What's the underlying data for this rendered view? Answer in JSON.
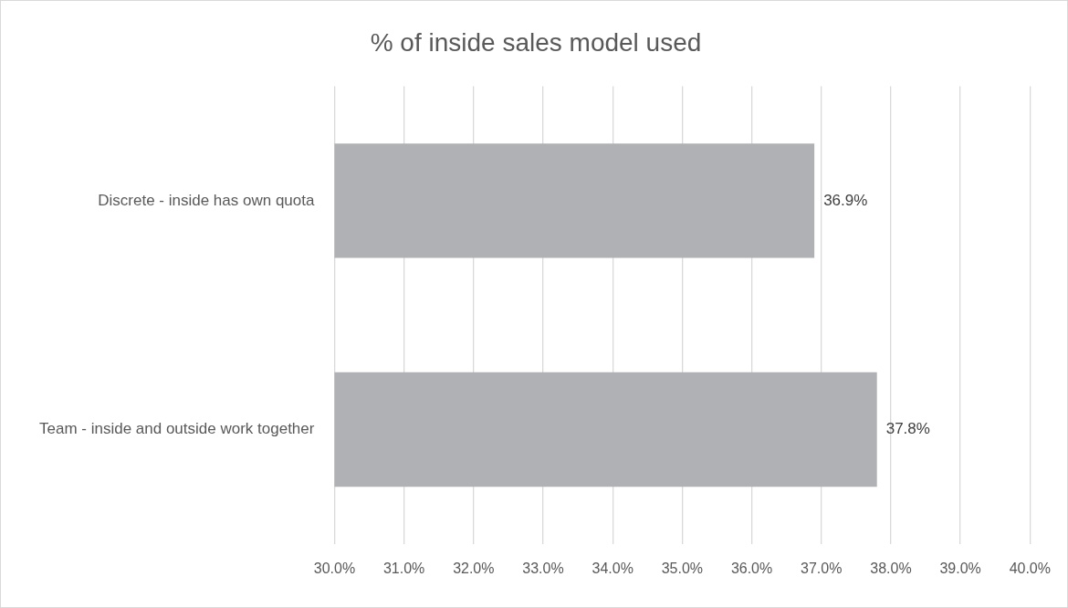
{
  "chart_data": {
    "type": "bar",
    "orientation": "horizontal",
    "title": "% of inside sales model used",
    "categories": [
      "Discrete - inside has own quota",
      "Team - inside and outside work together"
    ],
    "values": [
      36.9,
      37.8
    ],
    "value_labels": [
      "36.9%",
      "37.8%"
    ],
    "color": "#b0b1b5",
    "xlim": [
      30,
      40
    ],
    "xticks": [
      {
        "value": 30,
        "label": "30.0%"
      },
      {
        "value": 31,
        "label": "31.0%"
      },
      {
        "value": 32,
        "label": "32.0%"
      },
      {
        "value": 33,
        "label": "33.0%"
      },
      {
        "value": 34,
        "label": "34.0%"
      },
      {
        "value": 35,
        "label": "35.0%"
      },
      {
        "value": 36,
        "label": "36.0%"
      },
      {
        "value": 37,
        "label": "37.0%"
      },
      {
        "value": 38,
        "label": "38.0%"
      },
      {
        "value": 39,
        "label": "39.0%"
      },
      {
        "value": 40,
        "label": "40.0%"
      }
    ],
    "grid": "x",
    "legend": false
  }
}
